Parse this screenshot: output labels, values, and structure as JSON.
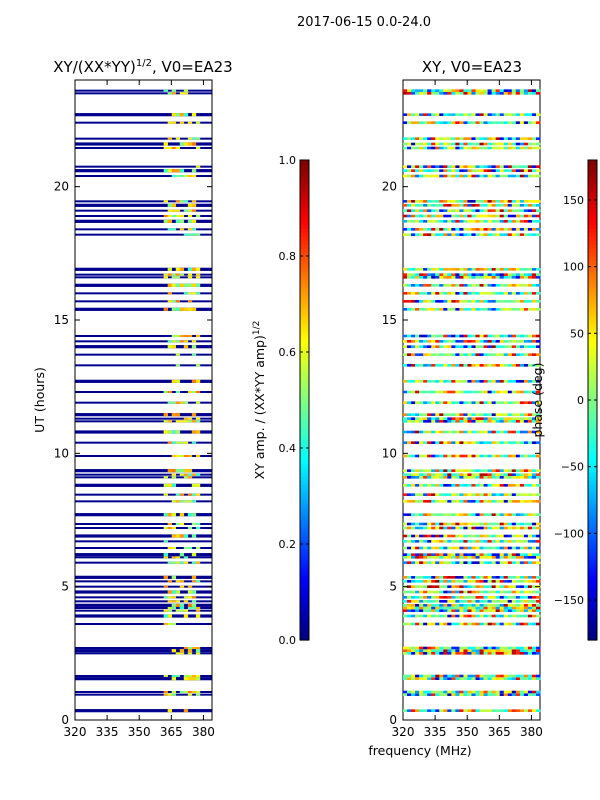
{
  "suptitle": "2017-06-15 0.0-24.0",
  "chart_data": [
    {
      "type": "heatmap",
      "title_main": "XY/(XX*YY)",
      "title_sup": "1/2",
      "title_suffix": ", V0=EA23",
      "ylabel": "UT (hours)",
      "xlim": [
        320,
        384
      ],
      "ylim": [
        0,
        24
      ],
      "xticks": [
        "320",
        "335",
        "350",
        "365",
        "380"
      ],
      "xtick_values": [
        320,
        335,
        350,
        365,
        380
      ],
      "yticks": [
        "0",
        "5",
        "10",
        "15",
        "20"
      ],
      "ytick_values": [
        0,
        5,
        10,
        15,
        20
      ],
      "colorbar": {
        "label_main": "XY amp. / (XX*YY amp)",
        "label_sup": "1/2",
        "range": [
          0.0,
          1.0
        ],
        "ticks": [
          "0.0",
          "0.2",
          "0.4",
          "0.6",
          "0.8",
          "1.0"
        ],
        "tick_values": [
          0.0,
          0.2,
          0.4,
          0.6,
          0.8,
          1.0
        ],
        "colormap": "jet"
      }
    },
    {
      "type": "heatmap",
      "title": "XY, V0=EA23",
      "xlabel": "frequency (MHz)",
      "xlim": [
        320,
        384
      ],
      "ylim": [
        0,
        24
      ],
      "xticks": [
        "320",
        "335",
        "350",
        "365",
        "380"
      ],
      "xtick_values": [
        320,
        335,
        350,
        365,
        380
      ],
      "yticks": [
        "0",
        "5",
        "10",
        "15",
        "20"
      ],
      "ytick_values": [
        0,
        5,
        10,
        15,
        20
      ],
      "colorbar": {
        "label": "phase (deg)",
        "range": [
          -180,
          180
        ],
        "ticks": [
          "−150",
          "−100",
          "−50",
          "0",
          "50",
          "100",
          "150"
        ],
        "tick_values": [
          -150,
          -100,
          -50,
          0,
          50,
          100,
          150
        ],
        "colormap": "jet"
      }
    }
  ],
  "scan_times": [
    0.35,
    0.95,
    1.05,
    1.55,
    1.65,
    2.5,
    2.6,
    2.7,
    3.6,
    3.9,
    4.1,
    4.2,
    4.3,
    4.45,
    4.6,
    4.8,
    5.0,
    5.2,
    5.35,
    5.9,
    6.1,
    6.2,
    6.45,
    6.7,
    6.9,
    7.2,
    7.35,
    7.7,
    8.2,
    8.45,
    8.8,
    9.1,
    9.2,
    9.35,
    9.9,
    10.4,
    10.8,
    11.2,
    11.3,
    11.45,
    11.9,
    12.3,
    12.7,
    13.3,
    13.7,
    14.0,
    14.2,
    14.4,
    15.4,
    15.7,
    16.0,
    16.3,
    16.6,
    16.7,
    16.9,
    18.2,
    18.4,
    18.7,
    18.9,
    19.1,
    19.3,
    19.45,
    20.4,
    20.6,
    20.75,
    21.45,
    21.6,
    21.8,
    22.4,
    22.7,
    23.5,
    23.6
  ]
}
